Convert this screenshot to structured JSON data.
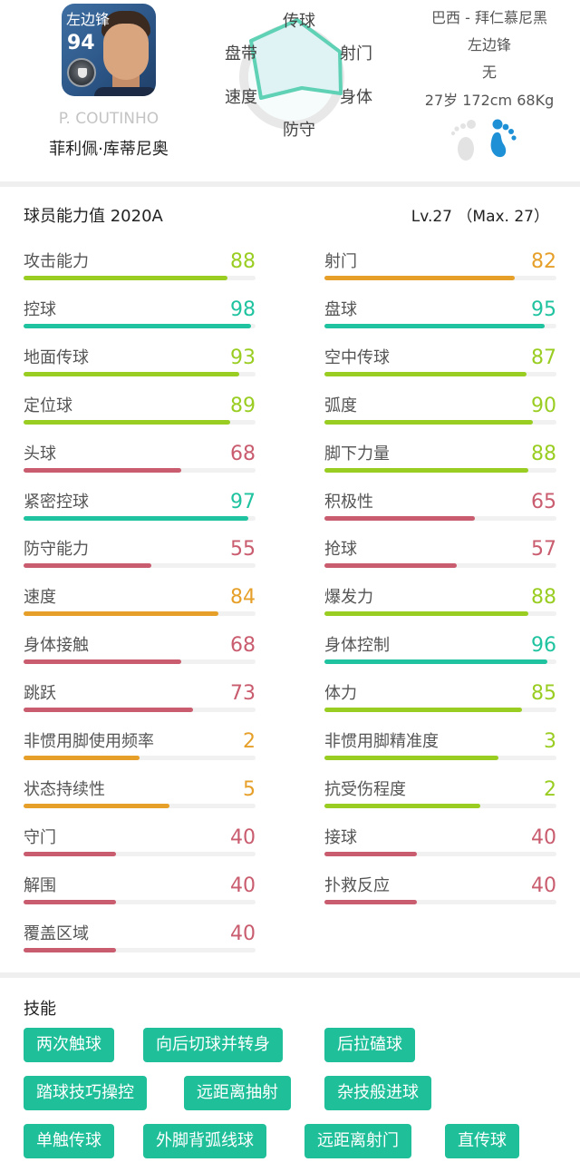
{
  "player": {
    "card_position": "左边锋",
    "card_rating": "94",
    "name_en": "P. COUTINHO",
    "name_cn": "菲利佩·库蒂尼奥"
  },
  "radar": {
    "labels": {
      "passing": "传球",
      "shooting": "射门",
      "physical": "身体",
      "defense": "防守",
      "speed": "速度",
      "dribbling": "盘带"
    },
    "colors": {
      "stroke": "#5fd1b5",
      "fill": "#dff3f5",
      "ring": "#e8e8e8"
    }
  },
  "info": {
    "nationality_club": "巴西 - 拜仁慕尼黑",
    "position": "左边锋",
    "extra": "无",
    "bio": "27岁 172cm 68Kg",
    "foot_left_color": "#e3e3e3",
    "foot_right_color": "#1e90d6"
  },
  "stats": {
    "title": "球员能力值 2020A",
    "level": "Lv.27 （Max. 27）",
    "colors": {
      "green": "#9acd22",
      "teal": "#1fc3a0",
      "orange": "#e6a02a",
      "red": "#c95c6e"
    },
    "left": [
      {
        "label": "攻击能力",
        "value": "88",
        "pct": 88,
        "color": "#9acd22"
      },
      {
        "label": "控球",
        "value": "98",
        "pct": 98,
        "color": "#1fc3a0"
      },
      {
        "label": "地面传球",
        "value": "93",
        "pct": 93,
        "color": "#9acd22"
      },
      {
        "label": "定位球",
        "value": "89",
        "pct": 89,
        "color": "#9acd22"
      },
      {
        "label": "头球",
        "value": "68",
        "pct": 68,
        "color": "#c95c6e"
      },
      {
        "label": "紧密控球",
        "value": "97",
        "pct": 97,
        "color": "#1fc3a0"
      },
      {
        "label": "防守能力",
        "value": "55",
        "pct": 55,
        "color": "#c95c6e"
      },
      {
        "label": "速度",
        "value": "84",
        "pct": 84,
        "color": "#e6a02a"
      },
      {
        "label": "身体接触",
        "value": "68",
        "pct": 68,
        "color": "#c95c6e"
      },
      {
        "label": "跳跃",
        "value": "73",
        "pct": 73,
        "color": "#c95c6e"
      },
      {
        "label": "非惯用脚使用频率",
        "value": "2",
        "pct": 50,
        "color": "#e6a02a"
      },
      {
        "label": "状态持续性",
        "value": "5",
        "pct": 63,
        "color": "#e6a02a"
      },
      {
        "label": "守门",
        "value": "40",
        "pct": 40,
        "color": "#c95c6e"
      },
      {
        "label": "解围",
        "value": "40",
        "pct": 40,
        "color": "#c95c6e"
      },
      {
        "label": "覆盖区域",
        "value": "40",
        "pct": 40,
        "color": "#c95c6e"
      }
    ],
    "right": [
      {
        "label": "射门",
        "value": "82",
        "pct": 82,
        "color": "#e6a02a"
      },
      {
        "label": "盘球",
        "value": "95",
        "pct": 95,
        "color": "#1fc3a0"
      },
      {
        "label": "空中传球",
        "value": "87",
        "pct": 87,
        "color": "#9acd22"
      },
      {
        "label": "弧度",
        "value": "90",
        "pct": 90,
        "color": "#9acd22"
      },
      {
        "label": "脚下力量",
        "value": "88",
        "pct": 88,
        "color": "#9acd22"
      },
      {
        "label": "积极性",
        "value": "65",
        "pct": 65,
        "color": "#c95c6e"
      },
      {
        "label": "抢球",
        "value": "57",
        "pct": 57,
        "color": "#c95c6e"
      },
      {
        "label": "爆发力",
        "value": "88",
        "pct": 88,
        "color": "#9acd22"
      },
      {
        "label": "身体控制",
        "value": "96",
        "pct": 96,
        "color": "#1fc3a0"
      },
      {
        "label": "体力",
        "value": "85",
        "pct": 85,
        "color": "#9acd22"
      },
      {
        "label": "非惯用脚精准度",
        "value": "3",
        "pct": 75,
        "color": "#9acd22"
      },
      {
        "label": "抗受伤程度",
        "value": "2",
        "pct": 67,
        "color": "#9acd22"
      },
      {
        "label": "接球",
        "value": "40",
        "pct": 40,
        "color": "#c95c6e"
      },
      {
        "label": "扑救反应",
        "value": "40",
        "pct": 40,
        "color": "#c95c6e"
      }
    ]
  },
  "skills": {
    "title": "技能",
    "color": "#1fbf9a",
    "rows": [
      [
        "两次触球",
        "向后切球并转身",
        "后拉磕球"
      ],
      [
        "踏球技巧操控",
        "远距离抽射",
        "杂技般进球"
      ],
      [
        "单触传球",
        "外脚背弧线球",
        "远距离射门",
        "直传球"
      ]
    ]
  }
}
